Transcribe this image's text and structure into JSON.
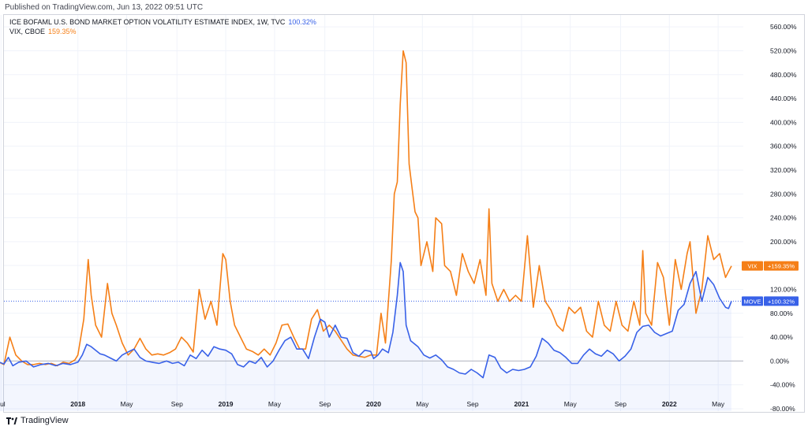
{
  "published": "Published on TradingView.com, Jun 13, 2022 09:51 UTC",
  "footer_brand": "TradingView",
  "chart_data": {
    "type": "line",
    "y_unit": "%",
    "ylim": [
      -84,
      580
    ],
    "y_ticks": [
      "560.00%",
      "520.00%",
      "480.00%",
      "440.00%",
      "400.00%",
      "360.00%",
      "320.00%",
      "280.00%",
      "240.00%",
      "200.00%",
      "160.00%",
      "120.00%",
      "80.00%",
      "40.00%",
      "0.00%",
      "-40.00%",
      "-80.00%"
    ],
    "y_tick_values": [
      560,
      520,
      480,
      440,
      400,
      360,
      320,
      280,
      240,
      200,
      160,
      120,
      80,
      40,
      0,
      -40,
      -80
    ],
    "x_range": [
      2017.5,
      2022.5
    ],
    "x_ticks": [
      {
        "label": "Jul",
        "x": 2017.48
      },
      {
        "label": "2018",
        "x": 2018.0
      },
      {
        "label": "May",
        "x": 2018.33
      },
      {
        "label": "Sep",
        "x": 2018.67
      },
      {
        "label": "2019",
        "x": 2019.0
      },
      {
        "label": "May",
        "x": 2019.33
      },
      {
        "label": "Sep",
        "x": 2019.67
      },
      {
        "label": "2020",
        "x": 2020.0
      },
      {
        "label": "May",
        "x": 2020.33
      },
      {
        "label": "Sep",
        "x": 2020.67
      },
      {
        "label": "2021",
        "x": 2021.0
      },
      {
        "label": "May",
        "x": 2021.33
      },
      {
        "label": "Sep",
        "x": 2021.67
      },
      {
        "label": "2022",
        "x": 2022.0
      },
      {
        "label": "May",
        "x": 2022.33
      }
    ],
    "baseline": 0,
    "series": [
      {
        "name": "ICE BOFAML U.S. BOND MARKET OPTION VOLATILITY ESTIMATE INDEX, 1W, TVC",
        "short": "MOVE",
        "legend_value": "100.32%",
        "badge_text": "+100.32%",
        "last": 100.32,
        "color": "#3861e8",
        "points": [
          [
            2017.45,
            0
          ],
          [
            2017.5,
            -5
          ],
          [
            2017.53,
            6
          ],
          [
            2017.56,
            -8
          ],
          [
            2017.6,
            -2
          ],
          [
            2017.65,
            0
          ],
          [
            2017.7,
            -10
          ],
          [
            2017.75,
            -6
          ],
          [
            2017.8,
            -4
          ],
          [
            2017.85,
            -8
          ],
          [
            2017.9,
            -4
          ],
          [
            2017.95,
            -6
          ],
          [
            2018.0,
            -2
          ],
          [
            2018.03,
            10
          ],
          [
            2018.06,
            28
          ],
          [
            2018.09,
            24
          ],
          [
            2018.12,
            18
          ],
          [
            2018.15,
            12
          ],
          [
            2018.18,
            10
          ],
          [
            2018.22,
            5
          ],
          [
            2018.26,
            0
          ],
          [
            2018.3,
            10
          ],
          [
            2018.33,
            14
          ],
          [
            2018.38,
            20
          ],
          [
            2018.42,
            6
          ],
          [
            2018.46,
            0
          ],
          [
            2018.5,
            -2
          ],
          [
            2018.55,
            -4
          ],
          [
            2018.6,
            0
          ],
          [
            2018.64,
            -4
          ],
          [
            2018.68,
            -2
          ],
          [
            2018.72,
            -8
          ],
          [
            2018.76,
            10
          ],
          [
            2018.8,
            4
          ],
          [
            2018.84,
            18
          ],
          [
            2018.88,
            8
          ],
          [
            2018.92,
            24
          ],
          [
            2018.96,
            20
          ],
          [
            2019.0,
            18
          ],
          [
            2019.04,
            12
          ],
          [
            2019.08,
            -6
          ],
          [
            2019.12,
            -10
          ],
          [
            2019.16,
            0
          ],
          [
            2019.2,
            -4
          ],
          [
            2019.24,
            6
          ],
          [
            2019.28,
            -10
          ],
          [
            2019.32,
            0
          ],
          [
            2019.36,
            18
          ],
          [
            2019.4,
            34
          ],
          [
            2019.44,
            40
          ],
          [
            2019.48,
            20
          ],
          [
            2019.52,
            20
          ],
          [
            2019.56,
            4
          ],
          [
            2019.6,
            40
          ],
          [
            2019.64,
            70
          ],
          [
            2019.67,
            65
          ],
          [
            2019.7,
            40
          ],
          [
            2019.74,
            60
          ],
          [
            2019.78,
            40
          ],
          [
            2019.82,
            38
          ],
          [
            2019.86,
            14
          ],
          [
            2019.9,
            8
          ],
          [
            2019.94,
            18
          ],
          [
            2019.98,
            16
          ],
          [
            2020.0,
            4
          ],
          [
            2020.03,
            10
          ],
          [
            2020.06,
            20
          ],
          [
            2020.1,
            14
          ],
          [
            2020.13,
            48
          ],
          [
            2020.16,
            110
          ],
          [
            2020.18,
            165
          ],
          [
            2020.2,
            150
          ],
          [
            2020.22,
            60
          ],
          [
            2020.25,
            34
          ],
          [
            2020.3,
            24
          ],
          [
            2020.34,
            10
          ],
          [
            2020.38,
            5
          ],
          [
            2020.42,
            10
          ],
          [
            2020.46,
            2
          ],
          [
            2020.5,
            -10
          ],
          [
            2020.54,
            -14
          ],
          [
            2020.58,
            -20
          ],
          [
            2020.62,
            -22
          ],
          [
            2020.66,
            -14
          ],
          [
            2020.7,
            -20
          ],
          [
            2020.74,
            -28
          ],
          [
            2020.78,
            10
          ],
          [
            2020.82,
            6
          ],
          [
            2020.86,
            -12
          ],
          [
            2020.9,
            -20
          ],
          [
            2020.94,
            -14
          ],
          [
            2020.98,
            -16
          ],
          [
            2021.02,
            -14
          ],
          [
            2021.06,
            -10
          ],
          [
            2021.1,
            8
          ],
          [
            2021.14,
            38
          ],
          [
            2021.18,
            30
          ],
          [
            2021.22,
            18
          ],
          [
            2021.26,
            14
          ],
          [
            2021.3,
            6
          ],
          [
            2021.34,
            -4
          ],
          [
            2021.38,
            -4
          ],
          [
            2021.42,
            10
          ],
          [
            2021.46,
            20
          ],
          [
            2021.5,
            12
          ],
          [
            2021.54,
            8
          ],
          [
            2021.58,
            18
          ],
          [
            2021.62,
            12
          ],
          [
            2021.66,
            0
          ],
          [
            2021.7,
            8
          ],
          [
            2021.74,
            20
          ],
          [
            2021.78,
            48
          ],
          [
            2021.82,
            58
          ],
          [
            2021.86,
            60
          ],
          [
            2021.9,
            48
          ],
          [
            2021.94,
            42
          ],
          [
            2021.98,
            46
          ],
          [
            2022.02,
            50
          ],
          [
            2022.06,
            85
          ],
          [
            2022.1,
            95
          ],
          [
            2022.14,
            130
          ],
          [
            2022.18,
            150
          ],
          [
            2022.22,
            100
          ],
          [
            2022.26,
            140
          ],
          [
            2022.3,
            128
          ],
          [
            2022.34,
            105
          ],
          [
            2022.38,
            90
          ],
          [
            2022.4,
            88
          ],
          [
            2022.42,
            100.32
          ]
        ]
      },
      {
        "name": "VIX, CBOE",
        "short": "VIX",
        "legend_value": "159.35%",
        "badge_text": "+159.35%",
        "last": 159.35,
        "color": "#f57f17",
        "points": [
          [
            2017.45,
            0
          ],
          [
            2017.5,
            -6
          ],
          [
            2017.54,
            40
          ],
          [
            2017.58,
            10
          ],
          [
            2017.62,
            0
          ],
          [
            2017.66,
            -6
          ],
          [
            2017.7,
            -6
          ],
          [
            2017.74,
            -4
          ],
          [
            2017.78,
            -6
          ],
          [
            2017.82,
            -4
          ],
          [
            2017.86,
            -8
          ],
          [
            2017.9,
            -2
          ],
          [
            2017.94,
            -4
          ],
          [
            2017.98,
            2
          ],
          [
            2018.0,
            10
          ],
          [
            2018.04,
            70
          ],
          [
            2018.07,
            170
          ],
          [
            2018.09,
            110
          ],
          [
            2018.12,
            60
          ],
          [
            2018.16,
            40
          ],
          [
            2018.2,
            130
          ],
          [
            2018.23,
            80
          ],
          [
            2018.26,
            60
          ],
          [
            2018.3,
            30
          ],
          [
            2018.34,
            10
          ],
          [
            2018.38,
            20
          ],
          [
            2018.42,
            38
          ],
          [
            2018.46,
            20
          ],
          [
            2018.5,
            10
          ],
          [
            2018.54,
            12
          ],
          [
            2018.58,
            10
          ],
          [
            2018.62,
            14
          ],
          [
            2018.66,
            20
          ],
          [
            2018.7,
            40
          ],
          [
            2018.74,
            30
          ],
          [
            2018.78,
            15
          ],
          [
            2018.82,
            120
          ],
          [
            2018.86,
            70
          ],
          [
            2018.9,
            100
          ],
          [
            2018.94,
            60
          ],
          [
            2018.98,
            180
          ],
          [
            2019.0,
            170
          ],
          [
            2019.03,
            100
          ],
          [
            2019.06,
            60
          ],
          [
            2019.1,
            40
          ],
          [
            2019.14,
            20
          ],
          [
            2019.18,
            16
          ],
          [
            2019.22,
            10
          ],
          [
            2019.26,
            20
          ],
          [
            2019.3,
            10
          ],
          [
            2019.34,
            30
          ],
          [
            2019.38,
            60
          ],
          [
            2019.42,
            62
          ],
          [
            2019.46,
            40
          ],
          [
            2019.5,
            20
          ],
          [
            2019.54,
            20
          ],
          [
            2019.58,
            70
          ],
          [
            2019.62,
            86
          ],
          [
            2019.66,
            50
          ],
          [
            2019.7,
            60
          ],
          [
            2019.74,
            50
          ],
          [
            2019.78,
            35
          ],
          [
            2019.82,
            20
          ],
          [
            2019.86,
            10
          ],
          [
            2019.9,
            8
          ],
          [
            2019.94,
            6
          ],
          [
            2019.98,
            10
          ],
          [
            2020.02,
            10
          ],
          [
            2020.05,
            80
          ],
          [
            2020.08,
            30
          ],
          [
            2020.12,
            170
          ],
          [
            2020.14,
            280
          ],
          [
            2020.16,
            300
          ],
          [
            2020.18,
            430
          ],
          [
            2020.2,
            520
          ],
          [
            2020.22,
            500
          ],
          [
            2020.24,
            330
          ],
          [
            2020.26,
            290
          ],
          [
            2020.28,
            250
          ],
          [
            2020.3,
            240
          ],
          [
            2020.32,
            160
          ],
          [
            2020.36,
            200
          ],
          [
            2020.4,
            150
          ],
          [
            2020.42,
            240
          ],
          [
            2020.46,
            230
          ],
          [
            2020.48,
            160
          ],
          [
            2020.52,
            150
          ],
          [
            2020.56,
            110
          ],
          [
            2020.6,
            180
          ],
          [
            2020.64,
            150
          ],
          [
            2020.68,
            130
          ],
          [
            2020.72,
            170
          ],
          [
            2020.76,
            110
          ],
          [
            2020.78,
            255
          ],
          [
            2020.8,
            130
          ],
          [
            2020.84,
            100
          ],
          [
            2020.88,
            120
          ],
          [
            2020.92,
            100
          ],
          [
            2020.96,
            110
          ],
          [
            2021.0,
            100
          ],
          [
            2021.04,
            210
          ],
          [
            2021.08,
            90
          ],
          [
            2021.12,
            160
          ],
          [
            2021.16,
            100
          ],
          [
            2021.2,
            85
          ],
          [
            2021.24,
            60
          ],
          [
            2021.28,
            50
          ],
          [
            2021.32,
            90
          ],
          [
            2021.36,
            80
          ],
          [
            2021.4,
            90
          ],
          [
            2021.44,
            50
          ],
          [
            2021.48,
            40
          ],
          [
            2021.52,
            100
          ],
          [
            2021.56,
            60
          ],
          [
            2021.6,
            50
          ],
          [
            2021.64,
            100
          ],
          [
            2021.68,
            60
          ],
          [
            2021.72,
            50
          ],
          [
            2021.76,
            100
          ],
          [
            2021.8,
            60
          ],
          [
            2021.82,
            185
          ],
          [
            2021.84,
            80
          ],
          [
            2021.88,
            60
          ],
          [
            2021.92,
            165
          ],
          [
            2021.96,
            140
          ],
          [
            2022.0,
            60
          ],
          [
            2022.04,
            170
          ],
          [
            2022.08,
            120
          ],
          [
            2022.12,
            180
          ],
          [
            2022.14,
            200
          ],
          [
            2022.18,
            80
          ],
          [
            2022.22,
            120
          ],
          [
            2022.26,
            210
          ],
          [
            2022.3,
            170
          ],
          [
            2022.34,
            180
          ],
          [
            2022.38,
            140
          ],
          [
            2022.4,
            150
          ],
          [
            2022.42,
            159.35
          ]
        ]
      }
    ],
    "horizontal_marker": {
      "value": 100.32,
      "style": "dotted"
    }
  }
}
